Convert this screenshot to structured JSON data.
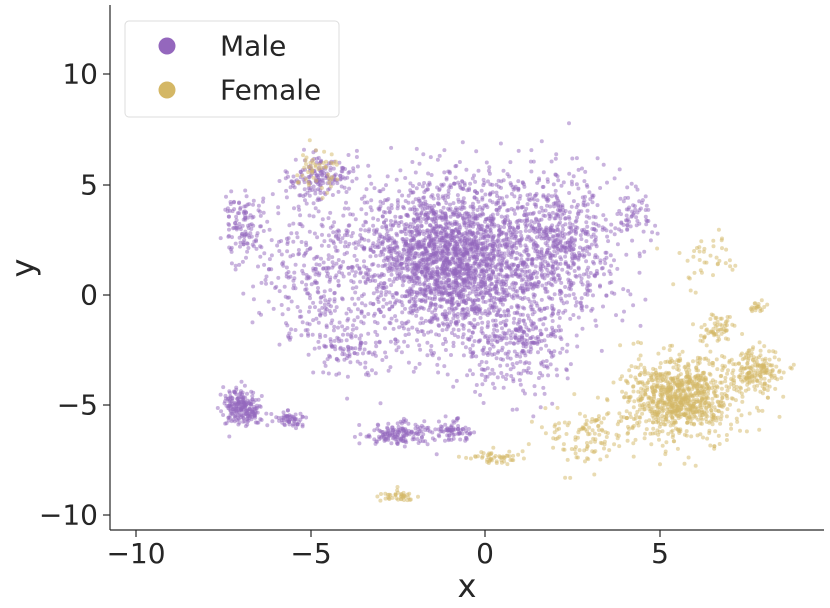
{
  "chart_data": {
    "type": "scatter",
    "title": "",
    "xlabel": "x",
    "ylabel": "y",
    "xlim": [
      -11,
      9.8
    ],
    "ylim": [
      -10.8,
      13.0
    ],
    "xticks": [
      -10,
      -5,
      0,
      5
    ],
    "xtick_labels": [
      "−10",
      "−5",
      "0",
      "5"
    ],
    "yticks": [
      -10,
      -5,
      0,
      5,
      10
    ],
    "ytick_labels": [
      "−10",
      "−5",
      "0",
      "5",
      "10"
    ],
    "grid": false,
    "legend_position": "top-left",
    "series": [
      {
        "name": "Male",
        "color": "#9467bd",
        "clusters": [
          {
            "center": [
              -1.0,
              1.5
            ],
            "spread": [
              2.6,
              3.3
            ],
            "count": 2600
          },
          {
            "center": [
              2.2,
              2.0
            ],
            "spread": [
              1.6,
              3.0
            ],
            "count": 600
          },
          {
            "center": [
              -4.8,
              5.2
            ],
            "spread": [
              0.9,
              0.9
            ],
            "count": 160
          },
          {
            "center": [
              -5.2,
              1.0
            ],
            "spread": [
              1.4,
              3.0
            ],
            "count": 250
          },
          {
            "center": [
              -7.2,
              3.0
            ],
            "spread": [
              0.6,
              1.5
            ],
            "count": 120
          },
          {
            "center": [
              -7.2,
              -5.2
            ],
            "spread": [
              0.5,
              0.7
            ],
            "count": 220
          },
          {
            "center": [
              -5.8,
              -5.8
            ],
            "spread": [
              0.5,
              0.4
            ],
            "count": 60
          },
          {
            "center": [
              -2.6,
              -6.4
            ],
            "spread": [
              1.0,
              0.5
            ],
            "count": 160
          },
          {
            "center": [
              -1.0,
              -6.3
            ],
            "spread": [
              0.5,
              0.4
            ],
            "count": 70
          },
          {
            "center": [
              0.8,
              -2.5
            ],
            "spread": [
              1.4,
              1.8
            ],
            "count": 280
          },
          {
            "center": [
              -4.0,
              -2.5
            ],
            "spread": [
              1.2,
              1.6
            ],
            "count": 120
          },
          {
            "center": [
              4.2,
              3.5
            ],
            "spread": [
              0.6,
              1.5
            ],
            "count": 60
          }
        ]
      },
      {
        "name": "Female",
        "color": "#d4b765",
        "clusters": [
          {
            "center": [
              5.6,
              -4.8
            ],
            "spread": [
              1.5,
              1.6
            ],
            "count": 900
          },
          {
            "center": [
              7.8,
              -3.6
            ],
            "spread": [
              0.7,
              0.9
            ],
            "count": 180
          },
          {
            "center": [
              6.7,
              -1.8
            ],
            "spread": [
              0.5,
              0.7
            ],
            "count": 60
          },
          {
            "center": [
              7.9,
              -0.7
            ],
            "spread": [
              0.2,
              0.2
            ],
            "count": 20
          },
          {
            "center": [
              0.3,
              -7.5
            ],
            "spread": [
              0.6,
              0.3
            ],
            "count": 50
          },
          {
            "center": [
              -2.6,
              -9.3
            ],
            "spread": [
              0.5,
              0.2
            ],
            "count": 40
          },
          {
            "center": [
              -4.9,
              5.5
            ],
            "spread": [
              0.6,
              0.9
            ],
            "count": 50
          },
          {
            "center": [
              3.0,
              -6.5
            ],
            "spread": [
              1.2,
              1.2
            ],
            "count": 120
          },
          {
            "center": [
              6.2,
              1.5
            ],
            "spread": [
              1.0,
              1.2
            ],
            "count": 40
          }
        ]
      }
    ]
  }
}
